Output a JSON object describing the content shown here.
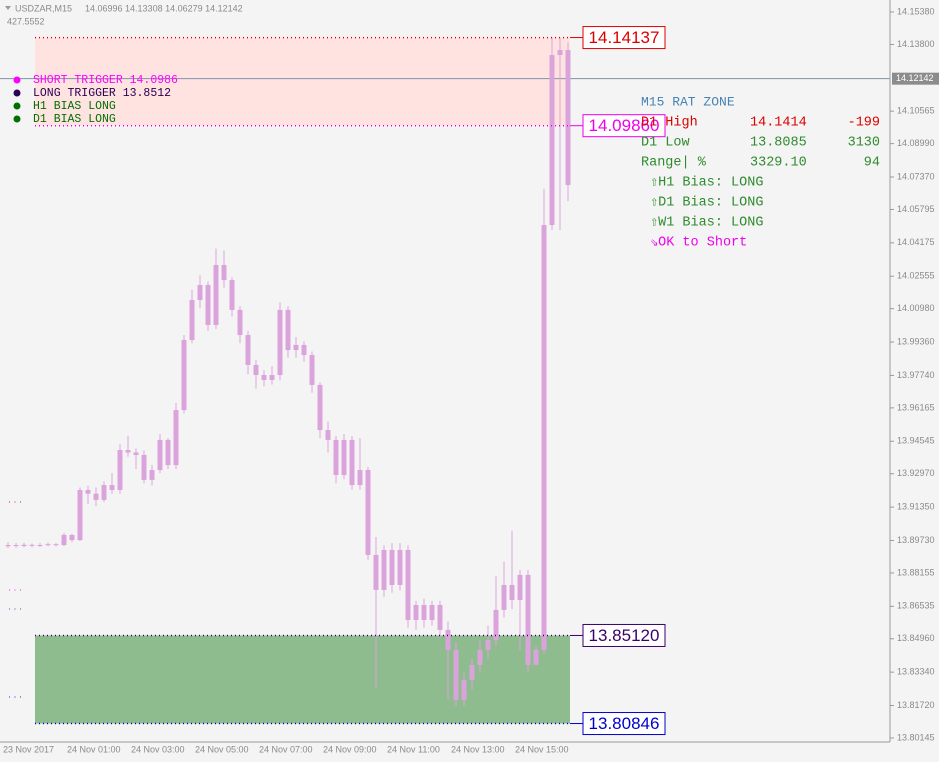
{
  "chart_data": {
    "type": "candlestick",
    "symbol": "USDZAR,M15",
    "header_prices": "14.06996 14.13308 14.06279 14.12142",
    "header_sub": "427.5552",
    "color": "#dba3dc",
    "bid": 14.12142,
    "ylim": [
      13.7995,
      14.1596
    ],
    "yticks": [
      {
        "value": 14.1538,
        "label": "14.15380"
      },
      {
        "value": 14.138,
        "label": "14.13800"
      },
      14.10565,
      {
        "value": 14.0899,
        "label": "14.08990"
      },
      {
        "value": 14.0737,
        "label": "14.07370"
      },
      14.05795,
      14.04175,
      14.02555,
      {
        "value": 14.0098,
        "label": "14.00980"
      },
      {
        "value": 13.9936,
        "label": "13.99360"
      },
      {
        "value": 13.9774,
        "label": "13.97740"
      },
      13.96165,
      13.94545,
      {
        "value": 13.9297,
        "label": "13.92970"
      },
      {
        "value": 13.9135,
        "label": "13.91350"
      },
      {
        "value": 13.8973,
        "label": "13.89730"
      },
      13.88155,
      13.86535,
      {
        "value": 13.8496,
        "label": "13.84960"
      },
      {
        "value": 13.8334,
        "label": "13.83340"
      },
      {
        "value": 13.8172,
        "label": "13.81720"
      },
      13.80145
    ],
    "categories": [
      "23 Nov 2017",
      null,
      null,
      null,
      null,
      null,
      null,
      null,
      "24 Nov 01:00",
      null,
      null,
      null,
      null,
      null,
      null,
      null,
      "24 Nov 03:00",
      null,
      null,
      null,
      null,
      null,
      null,
      null,
      "24 Nov 05:00",
      null,
      null,
      null,
      null,
      null,
      null,
      null,
      "24 Nov 07:00",
      null,
      null,
      null,
      null,
      null,
      null,
      null,
      "24 Nov 09:00",
      null,
      null,
      null,
      null,
      null,
      null,
      null,
      "24 Nov 11:00",
      null,
      null,
      null,
      null,
      null,
      null,
      null,
      "24 Nov 13:00",
      null,
      null,
      null,
      null,
      null,
      null,
      null,
      "24 Nov 15:00",
      null,
      null,
      null,
      null,
      null,
      null
    ],
    "open": [
      13.8945,
      13.8951,
      13.8946,
      13.8952,
      13.8948,
      13.8951,
      13.8955,
      13.8951,
      13.9,
      13.8975,
      13.9218,
      13.92,
      13.917,
      13.9242,
      13.9218,
      13.9412,
      13.94,
      13.9388,
      13.9267,
      13.9315,
      13.9461,
      13.9339,
      13.9606,
      13.9946,
      14.014,
      14.0213,
      14.0019,
      14.031,
      14.0237,
      14.0092,
      13.997,
      13.9825,
      13.9776,
      13.9752,
      13.9776,
      14.0092,
      13.9897,
      13.9922,
      13.9873,
      13.9728,
      13.9509,
      13.9461,
      13.9291,
      13.9461,
      13.9242,
      13.9315,
      13.8903,
      13.8733,
      13.8927,
      13.8757,
      13.8927,
      13.8587,
      13.866,
      13.8587,
      13.866,
      13.8539,
      13.8442,
      13.8199,
      13.8296,
      13.8369,
      13.8442,
      13.849,
      13.8636,
      13.8757,
      13.8684,
      13.8806,
      13.8369,
      13.8442,
      14.0504,
      14.1329,
      14.1353
    ],
    "high": [
      13.8965,
      13.896,
      13.8962,
      13.8958,
      13.896,
      13.8963,
      13.896,
      13.901,
      13.9005,
      13.923,
      13.924,
      13.923,
      13.926,
      13.93,
      13.944,
      13.948,
      13.942,
      13.941,
      13.934,
      13.949,
      13.947,
      13.964,
      13.997,
      14.019,
      14.026,
      14.023,
      14.039,
      14.038,
      14.025,
      14.011,
      13.999,
      13.985,
      13.98,
      13.982,
      14.013,
      14.011,
      13.996,
      13.994,
      13.989,
      13.974,
      13.955,
      13.948,
      13.949,
      13.948,
      13.947,
      13.933,
      13.899,
      13.895,
      13.896,
      13.896,
      13.895,
      13.868,
      13.869,
      13.868,
      13.868,
      13.858,
      13.848,
      13.833,
      13.84,
      13.849,
      13.856,
      13.88,
      13.887,
      13.902,
      13.883,
      13.883,
      13.846,
      14.068,
      14.1414,
      14.1414,
      14.139
    ],
    "low": [
      13.8935,
      13.8938,
      13.894,
      13.894,
      13.8942,
      13.8945,
      13.8944,
      13.8945,
      13.8965,
      13.897,
      13.915,
      13.914,
      13.916,
      13.92,
      13.92,
      13.938,
      13.932,
      13.925,
      13.924,
      13.93,
      13.932,
      13.932,
      13.959,
      13.993,
      14.01,
      13.999,
      14.0,
      14.02,
      14.006,
      13.993,
      13.978,
      13.971,
      13.972,
      13.973,
      13.975,
      13.986,
      13.986,
      13.984,
      13.969,
      13.947,
      13.94,
      13.925,
      13.927,
      13.922,
      13.922,
      13.888,
      13.826,
      13.87,
      13.872,
      13.873,
      13.855,
      13.854,
      13.855,
      13.856,
      13.85,
      13.82,
      13.817,
      13.817,
      13.825,
      13.833,
      13.84,
      13.846,
      13.86,
      13.864,
      13.844,
      13.833,
      13.84,
      13.842,
      14.048,
      14.048,
      14.062
    ],
    "close": [
      13.8951,
      13.8946,
      13.8952,
      13.8948,
      13.8951,
      13.8955,
      13.8951,
      13.9,
      13.8975,
      13.9218,
      13.92,
      13.917,
      13.9242,
      13.9218,
      13.9412,
      13.94,
      13.9388,
      13.9267,
      13.9315,
      13.9461,
      13.9339,
      13.9606,
      13.9946,
      14.014,
      14.0213,
      14.0019,
      14.031,
      14.0237,
      14.0092,
      13.997,
      13.9825,
      13.9776,
      13.9752,
      13.9776,
      14.0092,
      13.9897,
      13.9922,
      13.9873,
      13.9728,
      13.9509,
      13.9461,
      13.9291,
      13.9461,
      13.9242,
      13.9315,
      13.8903,
      13.8733,
      13.8927,
      13.8757,
      13.8927,
      13.8587,
      13.866,
      13.8587,
      13.866,
      13.8539,
      13.8442,
      13.8199,
      13.8296,
      13.8369,
      13.8442,
      13.849,
      13.8636,
      13.8757,
      13.8684,
      13.8806,
      13.8369,
      13.8442,
      14.0504,
      14.1329,
      14.1353,
      14.0698
    ],
    "levels": [
      {
        "price": 14.14137,
        "color": "#dd0000"
      },
      {
        "price": {
          "value": 14.0986,
          "label": "14.09860"
        },
        "color": "#ee00ee"
      },
      {
        "price": {
          "value": 13.8512,
          "label": "13.85120"
        },
        "color": "#3a006a"
      },
      {
        "price": 13.80846,
        "color": "#0000cc"
      }
    ],
    "zones": [
      {
        "color": "#ffe3e1"
      },
      {
        "color": "#8fbc8f"
      }
    ],
    "legend": [
      {
        "text": "SHORT TRIGGER 14.0986",
        "color": "#ff00ff"
      },
      {
        "text": "LONG TRIGGER   13.8512",
        "color": "#2a0050"
      },
      {
        "text": "H1 BIAS LONG",
        "color": "#007000"
      },
      {
        "text": "D1 BIAS LONG",
        "color": "#007000"
      }
    ],
    "panel": {
      "title": "M15 RAT ZONE",
      "rows": [
        {
          "cells": [
            "D1 High",
            "14.1414",
            "-199"
          ],
          "color": "#dd0000"
        },
        {
          "cells": [
            "D1 Low",
            "13.8085",
            "3130"
          ],
          "color": "#2e8b2e"
        },
        {
          "cells": [
            "Range| %",
            "3329.10",
            "94"
          ],
          "color": "#2e8b2e"
        }
      ],
      "notes": [
        {
          "text": "⇧H1 Bias: LONG",
          "color": "#2e8b2e"
        },
        {
          "text": "⇧D1 Bias: LONG",
          "color": "#2e8b2e"
        },
        {
          "text": "⇧W1 Bias: LONG",
          "color": "#2e8b2e"
        },
        {
          "text": "⇘OK to Short",
          "color": "#ee00ee"
        }
      ]
    }
  }
}
